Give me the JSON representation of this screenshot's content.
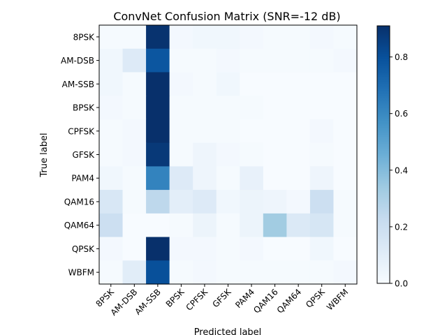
{
  "chart_data": {
    "type": "heatmap",
    "title": "ConvNet Confusion Matrix (SNR=-12 dB)",
    "xlabel": "Predicted label",
    "ylabel": "True label",
    "labels": [
      "8PSK",
      "AM-DSB",
      "AM-SSB",
      "BPSK",
      "CPFSK",
      "GFSK",
      "PAM4",
      "QAM16",
      "QAM64",
      "QPSK",
      "WBFM"
    ],
    "matrix": [
      [
        0.01,
        0.01,
        0.9,
        0.02,
        0.03,
        0.03,
        0.02,
        0.01,
        0.01,
        0.02,
        0.01
      ],
      [
        0.03,
        0.12,
        0.78,
        0.01,
        0.01,
        0.02,
        0.01,
        0.01,
        0.01,
        0.01,
        0.02
      ],
      [
        0.03,
        0.01,
        0.91,
        0.02,
        0.01,
        0.03,
        0.0,
        0.0,
        0.0,
        0.0,
        0.0
      ],
      [
        0.02,
        0.01,
        0.91,
        0.01,
        0.01,
        0.01,
        0.01,
        0.0,
        0.0,
        0.0,
        0.0
      ],
      [
        0.01,
        0.02,
        0.91,
        0.01,
        0.01,
        0.01,
        0.0,
        0.0,
        0.0,
        0.02,
        0.0
      ],
      [
        0.01,
        0.02,
        0.88,
        0.01,
        0.04,
        0.02,
        0.01,
        0.0,
        0.0,
        0.01,
        0.0
      ],
      [
        0.03,
        0.01,
        0.62,
        0.12,
        0.04,
        0.01,
        0.07,
        0.0,
        0.0,
        0.04,
        0.0
      ],
      [
        0.14,
        0.01,
        0.25,
        0.09,
        0.12,
        0.03,
        0.05,
        0.04,
        0.02,
        0.2,
        0.01
      ],
      [
        0.2,
        0.0,
        0.0,
        0.01,
        0.05,
        0.01,
        0.05,
        0.33,
        0.13,
        0.15,
        0.01
      ],
      [
        0.02,
        0.0,
        0.91,
        0.02,
        0.02,
        0.01,
        0.02,
        0.0,
        0.0,
        0.03,
        0.0
      ],
      [
        0.01,
        0.1,
        0.8,
        0.01,
        0.02,
        0.01,
        0.01,
        0.01,
        0.01,
        0.01,
        0.02
      ]
    ],
    "colormap": "Blues",
    "colorbar": {
      "vmin": 0.0,
      "vmax": 0.91,
      "ticks": [
        0.0,
        0.2,
        0.4,
        0.6,
        0.8
      ],
      "tick_labels": [
        "0.0",
        "0.2",
        "0.4",
        "0.6",
        "0.8"
      ]
    },
    "grid": false
  }
}
